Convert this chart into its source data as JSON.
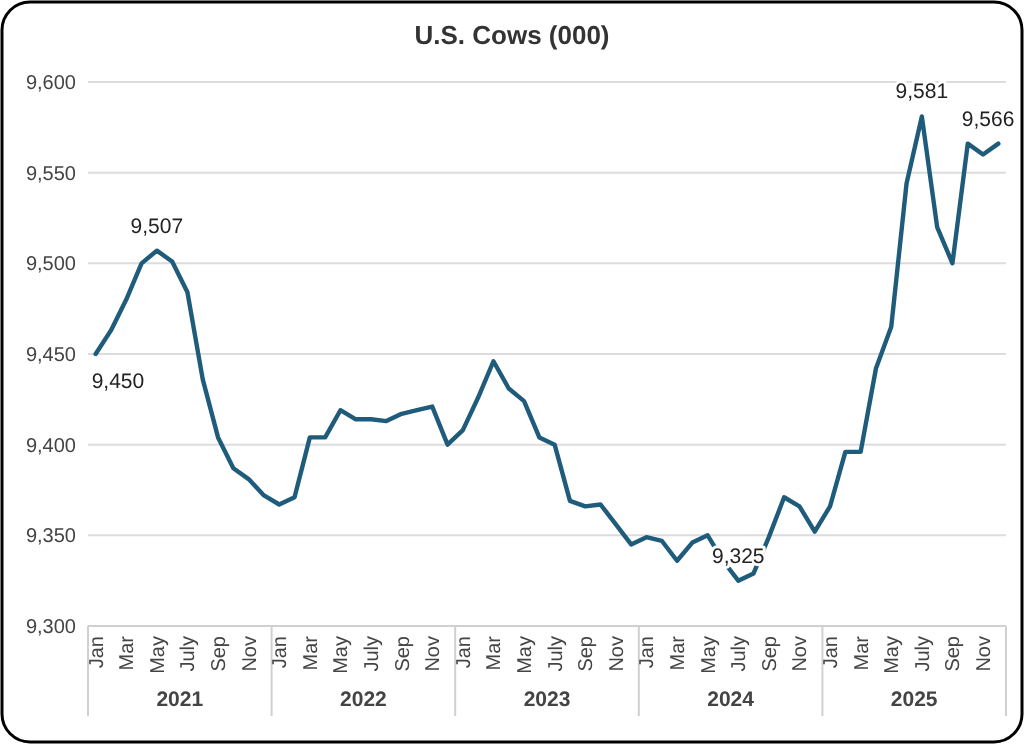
{
  "chart_data": {
    "type": "line",
    "title": "U.S. Cows (000)",
    "categories": [
      "Jan",
      null,
      "Mar",
      null,
      "May",
      null,
      "July",
      null,
      "Sep",
      null,
      "Nov",
      null,
      "Jan",
      null,
      "Mar",
      null,
      "May",
      null,
      "July",
      null,
      "Sep",
      null,
      "Nov",
      null,
      "Jan",
      null,
      "Mar",
      null,
      "May",
      null,
      "July",
      null,
      "Sep",
      null,
      "Nov",
      null,
      "Jan",
      null,
      "Mar",
      null,
      "May",
      null,
      "July",
      null,
      "Sep",
      null,
      "Nov",
      null,
      "Jan",
      null,
      "Mar",
      null,
      "May",
      null,
      "July",
      null,
      "Sep",
      null,
      "Nov",
      null
    ],
    "series": [
      {
        "color": "#1f5c7c",
        "values": [
          9450,
          9463,
          9480,
          9500,
          9507,
          9501,
          9484,
          9436,
          9404,
          9387,
          9381,
          9372,
          9367,
          9371,
          9404,
          9404,
          9419,
          9414,
          9414,
          9413,
          9417,
          9419,
          9421,
          9400,
          9408,
          9426,
          9446,
          9431,
          9424,
          9404,
          9400,
          9369,
          9366,
          9367,
          9356,
          9345,
          9349,
          9347,
          9336,
          9346,
          9350,
          9336,
          9325,
          9329,
          9349,
          9371,
          9366,
          9352,
          9366,
          9396,
          9396,
          9442,
          9465,
          9544,
          9581,
          9520,
          9500,
          9566,
          9560,
          9566
        ],
        "value_labels": [
          "9,450",
          null,
          null,
          null,
          "9,507",
          null,
          null,
          null,
          null,
          null,
          null,
          null,
          null,
          null,
          null,
          null,
          null,
          null,
          null,
          null,
          null,
          null,
          null,
          null,
          null,
          null,
          null,
          null,
          null,
          null,
          null,
          null,
          null,
          null,
          null,
          null,
          null,
          null,
          null,
          null,
          null,
          null,
          "9,325",
          null,
          null,
          null,
          null,
          null,
          null,
          null,
          null,
          null,
          null,
          null,
          "9,581",
          null,
          null,
          null,
          null,
          "9,566"
        ]
      }
    ],
    "ylim": [
      9300,
      9600
    ],
    "yticks": [
      {
        "value": 9300,
        "label": "9,300"
      },
      {
        "value": 9350,
        "label": "9,350"
      },
      {
        "value": 9400,
        "label": "9,400"
      },
      {
        "value": 9450,
        "label": "9,450"
      },
      {
        "value": 9500,
        "label": "9,500"
      },
      {
        "value": 9550,
        "label": "9,550"
      },
      {
        "value": 9600,
        "label": "9,600"
      }
    ],
    "grid": "y",
    "marker": "none",
    "line_style": "solid",
    "annotations": [
      "2021",
      "2022",
      "2023",
      "2024",
      "2025"
    ]
  }
}
